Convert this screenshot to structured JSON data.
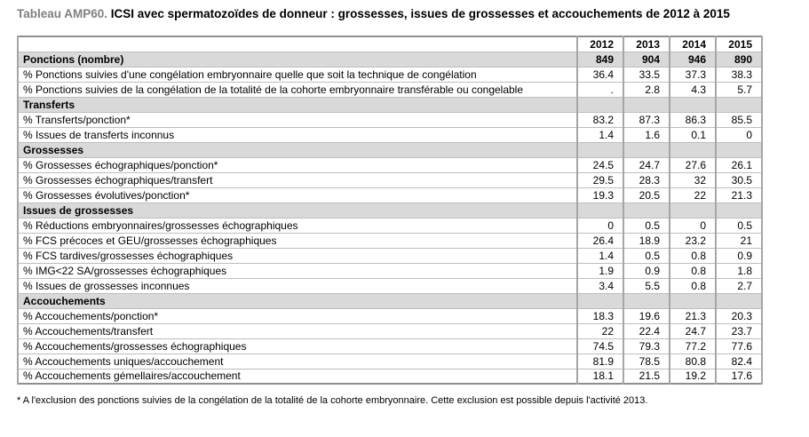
{
  "title": {
    "prefix": "Tableau AMP60.",
    "text": "ICSI avec spermatozoïdes de donneur : grossesses, issues de grossesses et accouchements de 2012 à 2015"
  },
  "table": {
    "year_columns": [
      "2012",
      "2013",
      "2014",
      "2015"
    ],
    "rows": [
      {
        "type": "section",
        "label": "Ponctions (nombre)",
        "values": [
          "849",
          "904",
          "946",
          "890"
        ]
      },
      {
        "type": "data",
        "label": "% Ponctions suivies d'une congélation embryonnaire quelle que soit la technique de congélation",
        "values": [
          "36.4",
          "33.5",
          "37.3",
          "38.3"
        ]
      },
      {
        "type": "data",
        "label": "% Ponctions suivies de la congélation de la totalité de la cohorte embryonnaire transférable ou congelable",
        "values": [
          ".",
          "2.8",
          "4.3",
          "5.7"
        ]
      },
      {
        "type": "section",
        "label": "Transferts",
        "values": [
          "",
          "",
          "",
          ""
        ]
      },
      {
        "type": "data",
        "label": "% Transferts/ponction*",
        "values": [
          "83.2",
          "87.3",
          "86.3",
          "85.5"
        ]
      },
      {
        "type": "data",
        "label": "% Issues de transferts inconnus",
        "values": [
          "1.4",
          "1.6",
          "0.1",
          "0"
        ]
      },
      {
        "type": "section",
        "label": "Grossesses",
        "values": [
          "",
          "",
          "",
          ""
        ]
      },
      {
        "type": "data",
        "label": "% Grossesses échographiques/ponction*",
        "values": [
          "24.5",
          "24.7",
          "27.6",
          "26.1"
        ]
      },
      {
        "type": "data",
        "label": "% Grossesses échographiques/transfert",
        "values": [
          "29.5",
          "28.3",
          "32",
          "30.5"
        ]
      },
      {
        "type": "data",
        "label": "% Grossesses évolutives/ponction*",
        "values": [
          "19.3",
          "20.5",
          "22",
          "21.3"
        ]
      },
      {
        "type": "section",
        "label": "Issues de grossesses",
        "values": [
          "",
          "",
          "",
          ""
        ]
      },
      {
        "type": "data",
        "label": "% Réductions embryonnaires/grossesses échographiques",
        "values": [
          "0",
          "0.5",
          "0",
          "0.5"
        ]
      },
      {
        "type": "data",
        "label": "% FCS précoces et GEU/grossesses échographiques",
        "values": [
          "26.4",
          "18.9",
          "23.2",
          "21"
        ]
      },
      {
        "type": "data",
        "label": "% FCS tardives/grossesses échographiques",
        "values": [
          "1.4",
          "0.5",
          "0.8",
          "0.9"
        ]
      },
      {
        "type": "data",
        "label": "% IMG<22 SA/grossesses échographiques",
        "values": [
          "1.9",
          "0.9",
          "0.8",
          "1.8"
        ]
      },
      {
        "type": "data",
        "label": "% Issues de grossesses inconnues",
        "values": [
          "3.4",
          "5.5",
          "0.8",
          "2.7"
        ]
      },
      {
        "type": "section",
        "label": "Accouchements",
        "values": [
          "",
          "",
          "",
          ""
        ]
      },
      {
        "type": "data",
        "label": "% Accouchements/ponction*",
        "values": [
          "18.3",
          "19.6",
          "21.3",
          "20.3"
        ]
      },
      {
        "type": "data",
        "label": "% Accouchements/transfert",
        "values": [
          "22",
          "22.4",
          "24.7",
          "23.7"
        ]
      },
      {
        "type": "data",
        "label": "% Accouchements/grossesses échographiques",
        "values": [
          "74.5",
          "79.3",
          "77.2",
          "77.6"
        ]
      },
      {
        "type": "data",
        "label": "% Accouchements uniques/accouchement",
        "values": [
          "81.9",
          "78.5",
          "80.8",
          "82.4"
        ]
      },
      {
        "type": "data",
        "label": "% Accouchements gémellaires/accouchement",
        "values": [
          "18.1",
          "21.5",
          "19.2",
          "17.6"
        ]
      }
    ]
  },
  "footnote": "* A l'exclusion des ponctions suivies de la congélation de la totalité de la cohorte embryonnaire. Cette exclusion est possible depuis l'activité 2013.",
  "colors": {
    "section_row_bg": "#d9d9d9",
    "outer_border": "#8e8e8e",
    "inner_border_vertical": "#a6a6a6",
    "inner_border_horizontal": "#bdbdbd",
    "title_prefix": "#7f7f7f"
  }
}
